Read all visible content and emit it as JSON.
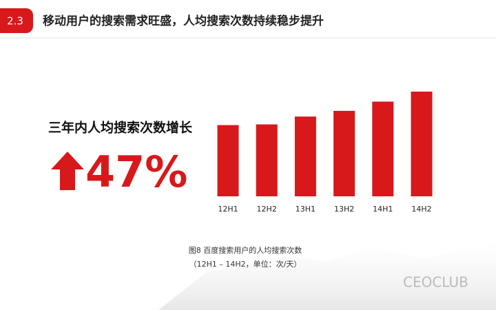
{
  "header": {
    "badge": "2.3",
    "title": "移动用户的搜索需求旺盛，人均搜索次数持续稳步提升"
  },
  "highlight": {
    "label": "三年内人均搜索次数增长",
    "value": "47%"
  },
  "chart_data": {
    "type": "bar",
    "categories": [
      "12H1",
      "12H2",
      "13H1",
      "13H2",
      "14H1",
      "14H2"
    ],
    "values": [
      100,
      101,
      112,
      120,
      133,
      147
    ],
    "color": "#d7191c",
    "caption": [
      "图8 百度搜索用户的人均搜索次数",
      "（12H1 – 14H2，单位：次/天）"
    ]
  },
  "watermark": "CEOCLUB"
}
